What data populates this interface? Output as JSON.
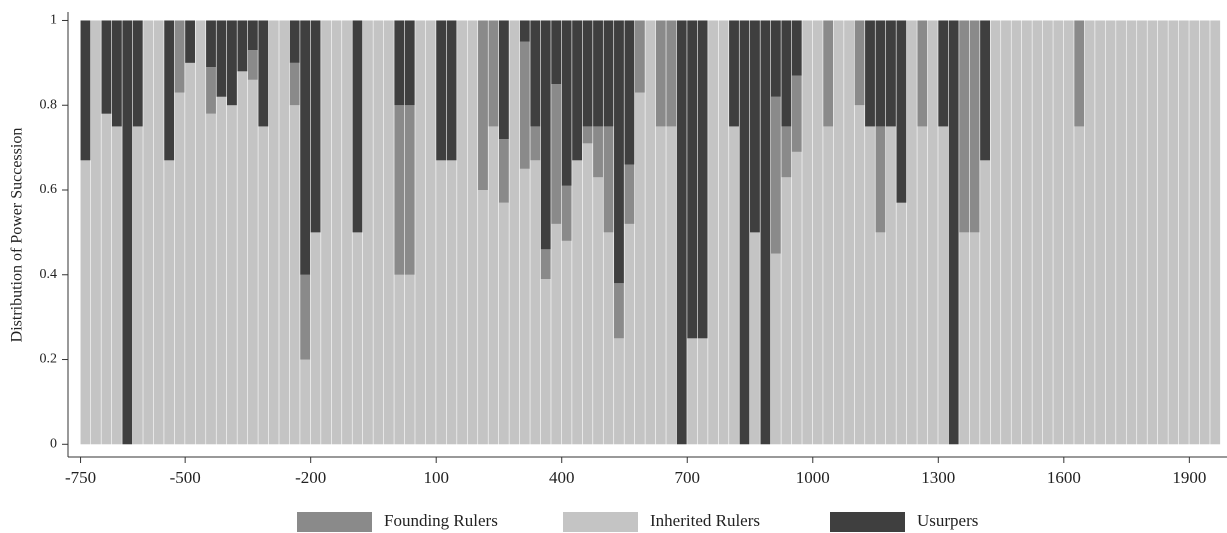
{
  "chart_data": {
    "type": "stacked_bar",
    "y_label": "Distribution of Power Succession",
    "x": [
      -750,
      -725,
      -700,
      -675,
      -650,
      -625,
      -600,
      -575,
      -550,
      -525,
      -500,
      -475,
      -450,
      -425,
      -400,
      -375,
      -350,
      -325,
      -300,
      -275,
      -250,
      -225,
      -200,
      -175,
      -150,
      -125,
      -100,
      -75,
      -50,
      -25,
      0,
      25,
      50,
      75,
      100,
      125,
      150,
      175,
      200,
      225,
      250,
      275,
      300,
      325,
      350,
      375,
      400,
      425,
      450,
      475,
      500,
      525,
      550,
      575,
      600,
      625,
      650,
      675,
      700,
      725,
      750,
      775,
      800,
      825,
      850,
      875,
      900,
      925,
      950,
      975,
      1000,
      1025,
      1050,
      1075,
      1100,
      1125,
      1150,
      1175,
      1200,
      1225,
      1250,
      1275,
      1300,
      1325,
      1350,
      1375,
      1400,
      1425,
      1450,
      1475,
      1500,
      1525,
      1550,
      1575,
      1600,
      1625,
      1650,
      1675,
      1700,
      1725,
      1750,
      1775,
      1800,
      1825,
      1850,
      1875,
      1900,
      1925,
      1950
    ],
    "bar_width": 25,
    "series": [
      {
        "name": "Inherited Rulers",
        "color": "#c4c4c4",
        "values": [
          0.67,
          1,
          0.78,
          0.75,
          0,
          0.75,
          1,
          1,
          0.67,
          0.83,
          0.9,
          1,
          0.78,
          0.82,
          0.8,
          0.88,
          0.86,
          0.75,
          1,
          1,
          0.8,
          0.2,
          0.5,
          1,
          1,
          1,
          0.5,
          1,
          1,
          1,
          0.4,
          0.4,
          1,
          1,
          0.67,
          0.67,
          1,
          1,
          0.6,
          0.75,
          0.57,
          1,
          0.65,
          0.67,
          0.39,
          0.52,
          0.48,
          0.67,
          0.71,
          0.63,
          0.5,
          0.25,
          0.52,
          0.83,
          1,
          0.75,
          0.75,
          0,
          0.25,
          0.25,
          1,
          1,
          0.75,
          0,
          0.5,
          0,
          0.45,
          0.63,
          0.69,
          1,
          1,
          0.75,
          1,
          1,
          0.8,
          0.75,
          0.5,
          0.75,
          0.57,
          1,
          0.75,
          1,
          0.75,
          0,
          0.5,
          0.5,
          0.67,
          1,
          1,
          1,
          1,
          1,
          1,
          1,
          1,
          0.75,
          1,
          1,
          1,
          1,
          1,
          1,
          1,
          1,
          1,
          1,
          1,
          1,
          1
        ]
      },
      {
        "name": "Founding Rulers",
        "color": "#8a8a8a",
        "values": [
          0,
          0,
          0,
          0,
          0,
          0,
          0,
          0,
          0,
          0.17,
          0,
          0,
          0.11,
          0,
          0,
          0,
          0.07,
          0,
          0,
          0,
          0.1,
          0.2,
          0,
          0,
          0,
          0,
          0,
          0,
          0,
          0,
          0.4,
          0.4,
          0,
          0,
          0,
          0,
          0,
          0,
          0.4,
          0.25,
          0.15,
          0,
          0.3,
          0.08,
          0.07,
          0.33,
          0.13,
          0,
          0.04,
          0.12,
          0.25,
          0.13,
          0.14,
          0.17,
          0,
          0.25,
          0.25,
          0,
          0,
          0,
          0,
          0,
          0,
          0,
          0,
          0,
          0.37,
          0.12,
          0.18,
          0,
          0,
          0.25,
          0,
          0,
          0.2,
          0,
          0.25,
          0,
          0,
          0,
          0.25,
          0,
          0,
          0,
          0.5,
          0.5,
          0,
          0,
          0,
          0,
          0,
          0,
          0,
          0,
          0,
          0.25,
          0,
          0,
          0,
          0,
          0,
          0,
          0,
          0,
          0,
          0,
          0,
          0,
          0
        ]
      },
      {
        "name": "Usurpers",
        "color": "#3f3f3f",
        "values": [
          0.33,
          0,
          0.22,
          0.25,
          1,
          0.25,
          0,
          0,
          0.33,
          0,
          0.1,
          0,
          0.11,
          0.18,
          0.2,
          0.12,
          0.07,
          0.25,
          0,
          0,
          0.1,
          0.6,
          0.5,
          0,
          0,
          0,
          0.5,
          0,
          0,
          0,
          0.2,
          0.2,
          0,
          0,
          0.33,
          0.33,
          0,
          0,
          0,
          0,
          0.28,
          0,
          0.05,
          0.25,
          0.54,
          0.15,
          0.39,
          0.33,
          0.25,
          0.25,
          0.25,
          0.62,
          0.34,
          0,
          0,
          0,
          0,
          1,
          0.75,
          0.75,
          0,
          0,
          0.25,
          1,
          0.5,
          1,
          0.18,
          0.25,
          0.13,
          0,
          0,
          0,
          0,
          0,
          0,
          0.25,
          0.25,
          0.25,
          0.43,
          0,
          0,
          0,
          0.25,
          1,
          0,
          0,
          0.33,
          0,
          0,
          0,
          0,
          0,
          0,
          0,
          0,
          0,
          0,
          0,
          0,
          0,
          0,
          0,
          0,
          0,
          0,
          0,
          0,
          0,
          0
        ]
      }
    ],
    "legend_order": [
      1,
      0,
      2
    ],
    "xlim": [
      -780,
      1990
    ],
    "xticks": [
      -750,
      -500,
      -200,
      100,
      400,
      700,
      1000,
      1300,
      1600,
      1900
    ],
    "ylim": [
      -0.03,
      1.02
    ],
    "yticks": [
      0,
      0.2,
      0.4,
      0.6,
      0.8,
      1
    ]
  }
}
